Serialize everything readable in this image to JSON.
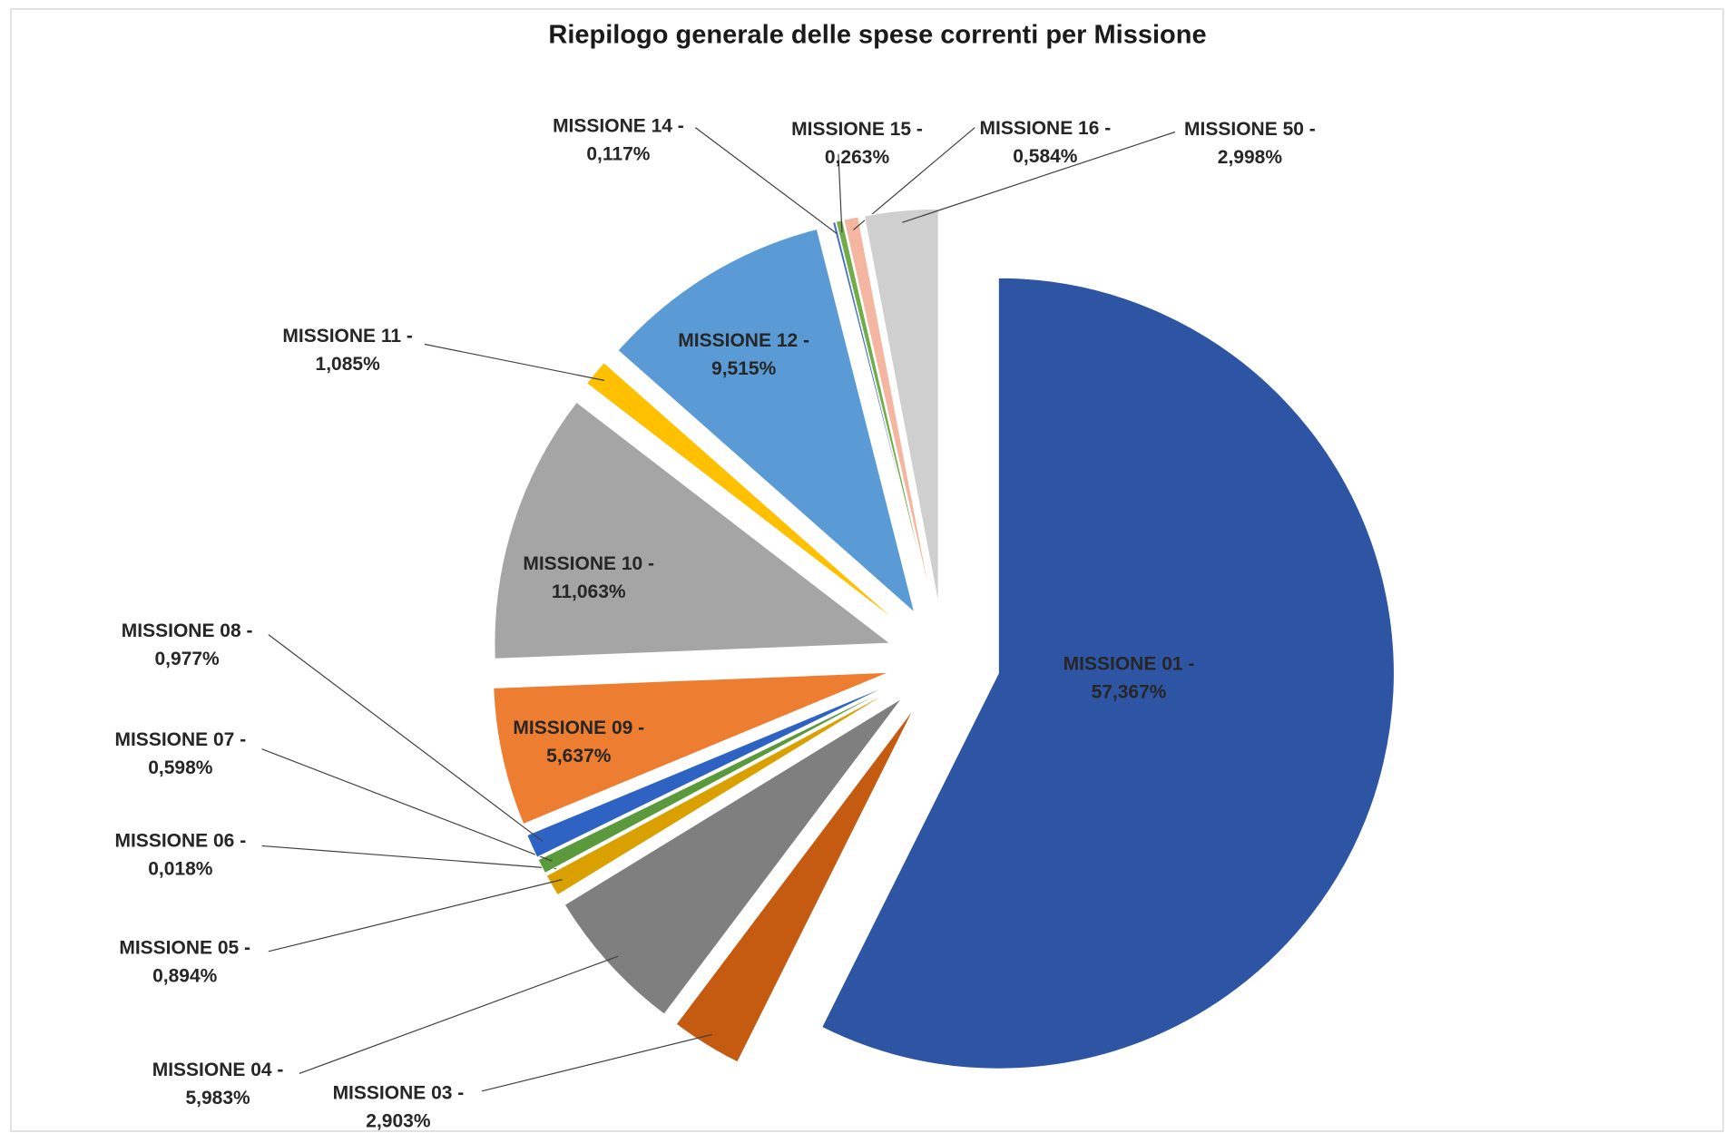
{
  "chart_data": {
    "type": "pie",
    "title": "Riepilogo generale delle spese correnti per Missione",
    "categories": [
      "MISSIONE 01 -",
      "MISSIONE 03 -",
      "MISSIONE 04 -",
      "MISSIONE 05 -",
      "MISSIONE 06 -",
      "MISSIONE 07 -",
      "MISSIONE 08 -",
      "MISSIONE 09 -",
      "MISSIONE 10 -",
      "MISSIONE 11 -",
      "MISSIONE 12 -",
      "MISSIONE 14 -",
      "MISSIONE 15 -",
      "MISSIONE 16 -",
      "MISSIONE 50 -"
    ],
    "values": [
      57.367,
      2.903,
      5.983,
      0.894,
      0.018,
      0.598,
      0.977,
      5.637,
      11.063,
      1.085,
      9.515,
      0.117,
      0.263,
      0.584,
      2.998
    ],
    "value_labels": [
      "57,367%",
      "2,903%",
      "5,983%",
      "0,894%",
      "0,018%",
      "0,598%",
      "0,977%",
      "5,637%",
      "11,063%",
      "1,085%",
      "9,515%",
      "0,117%",
      "0,263%",
      "0,584%",
      "2,998%"
    ],
    "colors": [
      "#2d55a3",
      "#c55a11",
      "#7f7f7f",
      "#d9a000",
      "#8c6d1f",
      "#5b9a3c",
      "#2e63c4",
      "#ed7d31",
      "#a5a5a5",
      "#ffc000",
      "#5b9bd5",
      "#4472c4",
      "#70ad47",
      "#f4b6a0",
      "#cfcfcf"
    ]
  }
}
